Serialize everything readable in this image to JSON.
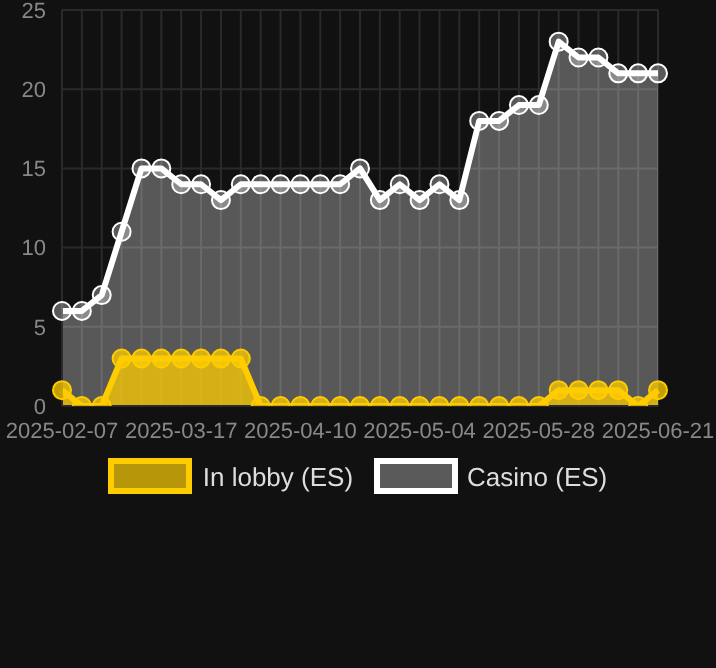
{
  "chart_data": {
    "type": "area",
    "categories": [
      "2025-02-07",
      null,
      null,
      null,
      null,
      null,
      "2025-03-17",
      null,
      null,
      null,
      null,
      null,
      "2025-04-10",
      null,
      null,
      null,
      null,
      null,
      "2025-05-04",
      null,
      null,
      null,
      null,
      null,
      "2025-05-28",
      null,
      null,
      null,
      null,
      null,
      "2025-06-21"
    ],
    "series": [
      {
        "name": "In lobby (ES)",
        "color": "#ffcc00",
        "values": [
          1,
          0,
          0,
          3,
          3,
          3,
          3,
          3,
          3,
          3,
          0,
          0,
          0,
          0,
          0,
          0,
          0,
          0,
          0,
          0,
          0,
          0,
          0,
          0,
          0,
          1,
          1,
          1,
          1,
          0,
          1
        ]
      },
      {
        "name": "Casino (ES)",
        "color": "#ffffff",
        "values": [
          6,
          6,
          7,
          11,
          15,
          15,
          14,
          14,
          13,
          14,
          14,
          14,
          14,
          14,
          14,
          15,
          13,
          14,
          13,
          14,
          13,
          18,
          18,
          19,
          19,
          23,
          22,
          22,
          21,
          21,
          21
        ]
      }
    ],
    "ylim": [
      0,
      25
    ],
    "yticks": [
      0,
      5,
      10,
      15,
      20,
      25
    ],
    "grid": true,
    "legend": "bottom",
    "marker": "circle"
  }
}
